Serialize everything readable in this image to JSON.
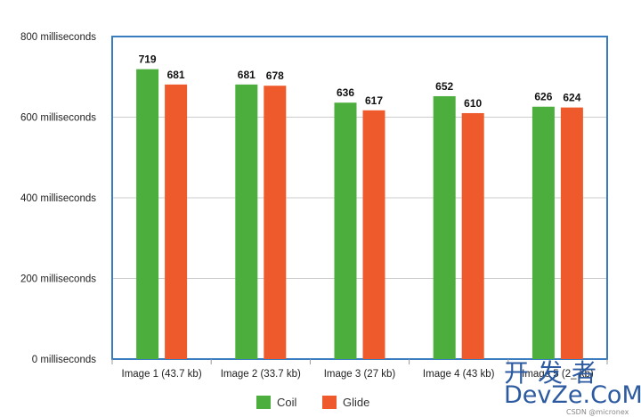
{
  "chart_data": {
    "type": "bar",
    "categories": [
      "Image 1 (43.7 kb)",
      "Image 2 (33.7 kb)",
      "Image 3 (27 kb)",
      "Image 4 (43 kb)",
      "Image 5 (2_ kb)"
    ],
    "series": [
      {
        "name": "Coil",
        "values": [
          719,
          681,
          636,
          652,
          626
        ],
        "color": "#4cae3c"
      },
      {
        "name": "Glide",
        "values": [
          681,
          678,
          617,
          610,
          624
        ],
        "color": "#ee5a2c"
      }
    ],
    "ylim": [
      0,
      800
    ],
    "yticks": [
      0,
      200,
      400,
      600,
      800
    ],
    "ytick_labels": [
      "0 milliseconds",
      "200 milliseconds",
      "400 milliseconds",
      "600 milliseconds",
      "800 milliseconds"
    ],
    "data_labels": [
      [
        "719",
        "681",
        "636",
        "652",
        "626"
      ],
      [
        "681",
        "678",
        "617",
        "610",
        "624"
      ]
    ],
    "grid": true,
    "legend_position": "bottom-center",
    "frame_color": "#3a7cc0",
    "grid_color": "#cccccc"
  },
  "watermark": {
    "text_cn": "开发者",
    "text_en": "DevZe.CoM",
    "small": "CSDN @micronex"
  }
}
